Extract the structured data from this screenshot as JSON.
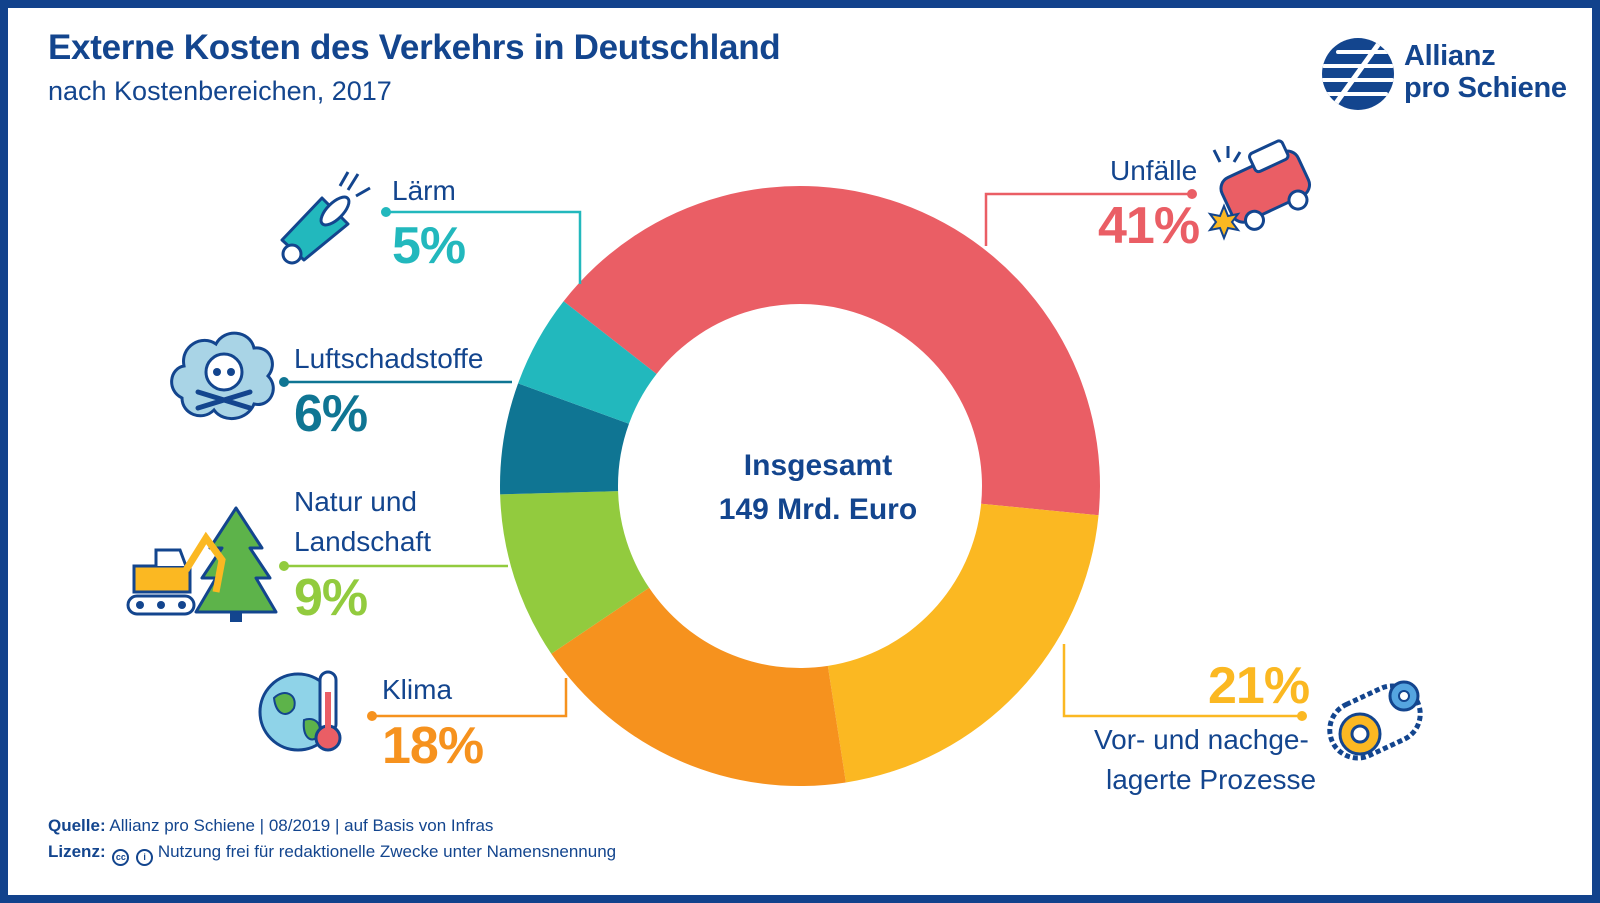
{
  "header": {
    "title": "Externe Kosten des Verkehrs in Deutschland",
    "subtitle": "nach Kostenbereichen, 2017"
  },
  "logo": {
    "line1": "Allianz",
    "line2": "pro Schiene",
    "icon": "rail-stripes-logo-icon",
    "color": "#13458e"
  },
  "center": {
    "line1": "Insgesamt",
    "line2": "149 Mrd. Euro"
  },
  "chart_data": {
    "type": "pie",
    "variant": "donut",
    "title": "Externe Kosten des Verkehrs in Deutschland",
    "subtitle": "nach Kostenbereichen, 2017",
    "unit": "%",
    "total_label": "Insgesamt 149 Mrd. Euro",
    "slices": [
      {
        "name": "Unfälle",
        "value": 41,
        "label": "41%",
        "color": "#ea5e65",
        "icon": "car-crash-icon"
      },
      {
        "name": "Vor- und nachgelagerte Prozesse",
        "label_lines": [
          "Vor- und nachge-",
          "lagerte Prozesse"
        ],
        "value": 21,
        "label": "21%",
        "color": "#fbb822",
        "icon": "gear-conveyor-icon"
      },
      {
        "name": "Klima",
        "value": 18,
        "label": "18%",
        "color": "#f6921e",
        "icon": "globe-thermometer-icon"
      },
      {
        "name": "Natur und Landschaft",
        "label_lines": [
          "Natur und",
          "Landschaft"
        ],
        "value": 9,
        "label": "9%",
        "color": "#92cb3e",
        "icon": "excavator-tree-icon"
      },
      {
        "name": "Luftschadstoffe",
        "value": 6,
        "label": "6%",
        "color": "#0f7593",
        "icon": "skull-cloud-icon"
      },
      {
        "name": "Lärm",
        "value": 5,
        "label": "5%",
        "color": "#22b8bd",
        "icon": "megaphone-icon"
      }
    ],
    "legend": "none"
  },
  "footer": {
    "source_label": "Quelle:",
    "source_text": "Allianz pro Schiene | 08/2019 | auf Basis von Infras",
    "license_label": "Lizenz:",
    "license_text": "Nutzung frei für redaktionelle Zwecke unter Namensnennung",
    "cc_glyph": "cc"
  }
}
